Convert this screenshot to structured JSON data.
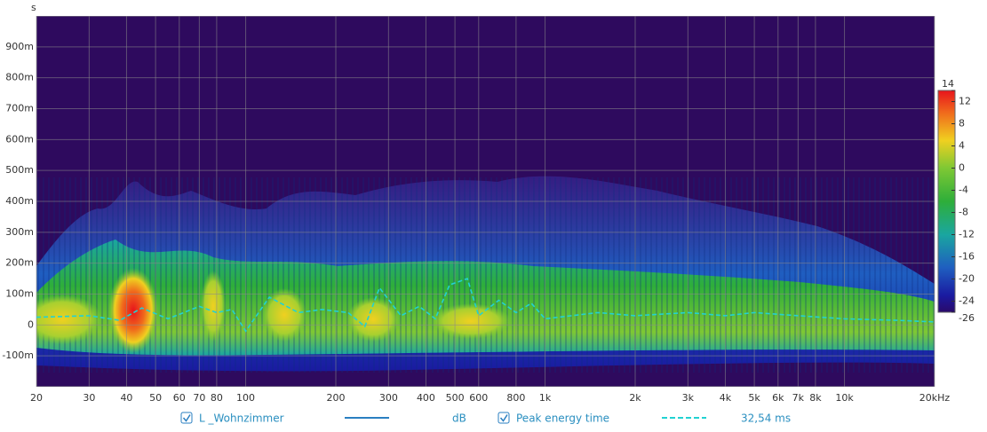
{
  "chart_data": {
    "type": "spectrogram",
    "y_unit": "s",
    "xscale": "log",
    "xlim": [
      20,
      20000
    ],
    "xticks": [
      20,
      30,
      40,
      50,
      60,
      70,
      80,
      100,
      200,
      300,
      400,
      500,
      600,
      800,
      {
        "value": 1000,
        "label": "1k"
      },
      {
        "value": 2000,
        "label": "2k"
      },
      {
        "value": 3000,
        "label": "3k"
      },
      {
        "value": 4000,
        "label": "4k"
      },
      {
        "value": 5000,
        "label": "5k"
      },
      {
        "value": 6000,
        "label": "6k"
      },
      {
        "value": 7000,
        "label": "7k"
      },
      {
        "value": 8000,
        "label": "8k"
      },
      {
        "value": 10000,
        "label": "10k"
      },
      {
        "value": 20000,
        "label": "20kHz"
      }
    ],
    "ylim": [
      -0.2,
      1.0
    ],
    "yticks": [
      {
        "value": -0.1,
        "label": "-100m"
      },
      0,
      {
        "value": 0.1,
        "label": "100m"
      },
      {
        "value": 0.2,
        "label": "200m"
      },
      {
        "value": 0.3,
        "label": "300m"
      },
      {
        "value": 0.4,
        "label": "400m"
      },
      {
        "value": 0.5,
        "label": "500m"
      },
      {
        "value": 0.6,
        "label": "600m"
      },
      {
        "value": 0.7,
        "label": "700m"
      },
      {
        "value": 0.8,
        "label": "800m"
      },
      {
        "value": 0.9,
        "label": "900m"
      }
    ],
    "grid": true,
    "spectrum": {
      "name": "L _Wohnzimmer",
      "color": "#2a7fc1",
      "unit": "dB"
    },
    "colorbar": {
      "lim": [
        -26,
        14
      ],
      "ticks": [
        14,
        12,
        8,
        4,
        0,
        -4,
        -8,
        -12,
        -16,
        -20,
        -24,
        -26
      ],
      "colorscale": [
        {
          "value": 14,
          "color": "#e8141c"
        },
        {
          "value": 10,
          "color": "#f06a1c"
        },
        {
          "value": 5,
          "color": "#f0d020"
        },
        {
          "value": 0,
          "color": "#7ec834"
        },
        {
          "value": -6,
          "color": "#2eae3a"
        },
        {
          "value": -12,
          "color": "#1aa6a0"
        },
        {
          "value": -18,
          "color": "#1f5ec0"
        },
        {
          "value": -23,
          "color": "#1a1aa0"
        },
        {
          "value": -26,
          "color": "#2a0a6a"
        }
      ]
    },
    "series": [
      {
        "name": "Peak energy time",
        "color": "#22d2d2",
        "dashed": true,
        "legend_value": "32,54 ms",
        "x": [
          20,
          30,
          38,
          45,
          55,
          70,
          80,
          90,
          100,
          120,
          150,
          180,
          220,
          250,
          280,
          330,
          380,
          430,
          480,
          550,
          600,
          700,
          800,
          900,
          1000,
          1500,
          2000,
          3000,
          4000,
          5000,
          7000,
          10000,
          15000,
          20000
        ],
        "values": [
          0.025,
          0.03,
          0.015,
          0.055,
          0.02,
          0.06,
          0.04,
          0.05,
          -0.02,
          0.09,
          0.04,
          0.05,
          0.04,
          -0.005,
          0.12,
          0.03,
          0.06,
          0.02,
          0.13,
          0.15,
          0.03,
          0.08,
          0.04,
          0.07,
          0.02,
          0.04,
          0.03,
          0.04,
          0.03,
          0.04,
          0.03,
          0.02,
          0.015,
          0.01
        ]
      }
    ]
  }
}
